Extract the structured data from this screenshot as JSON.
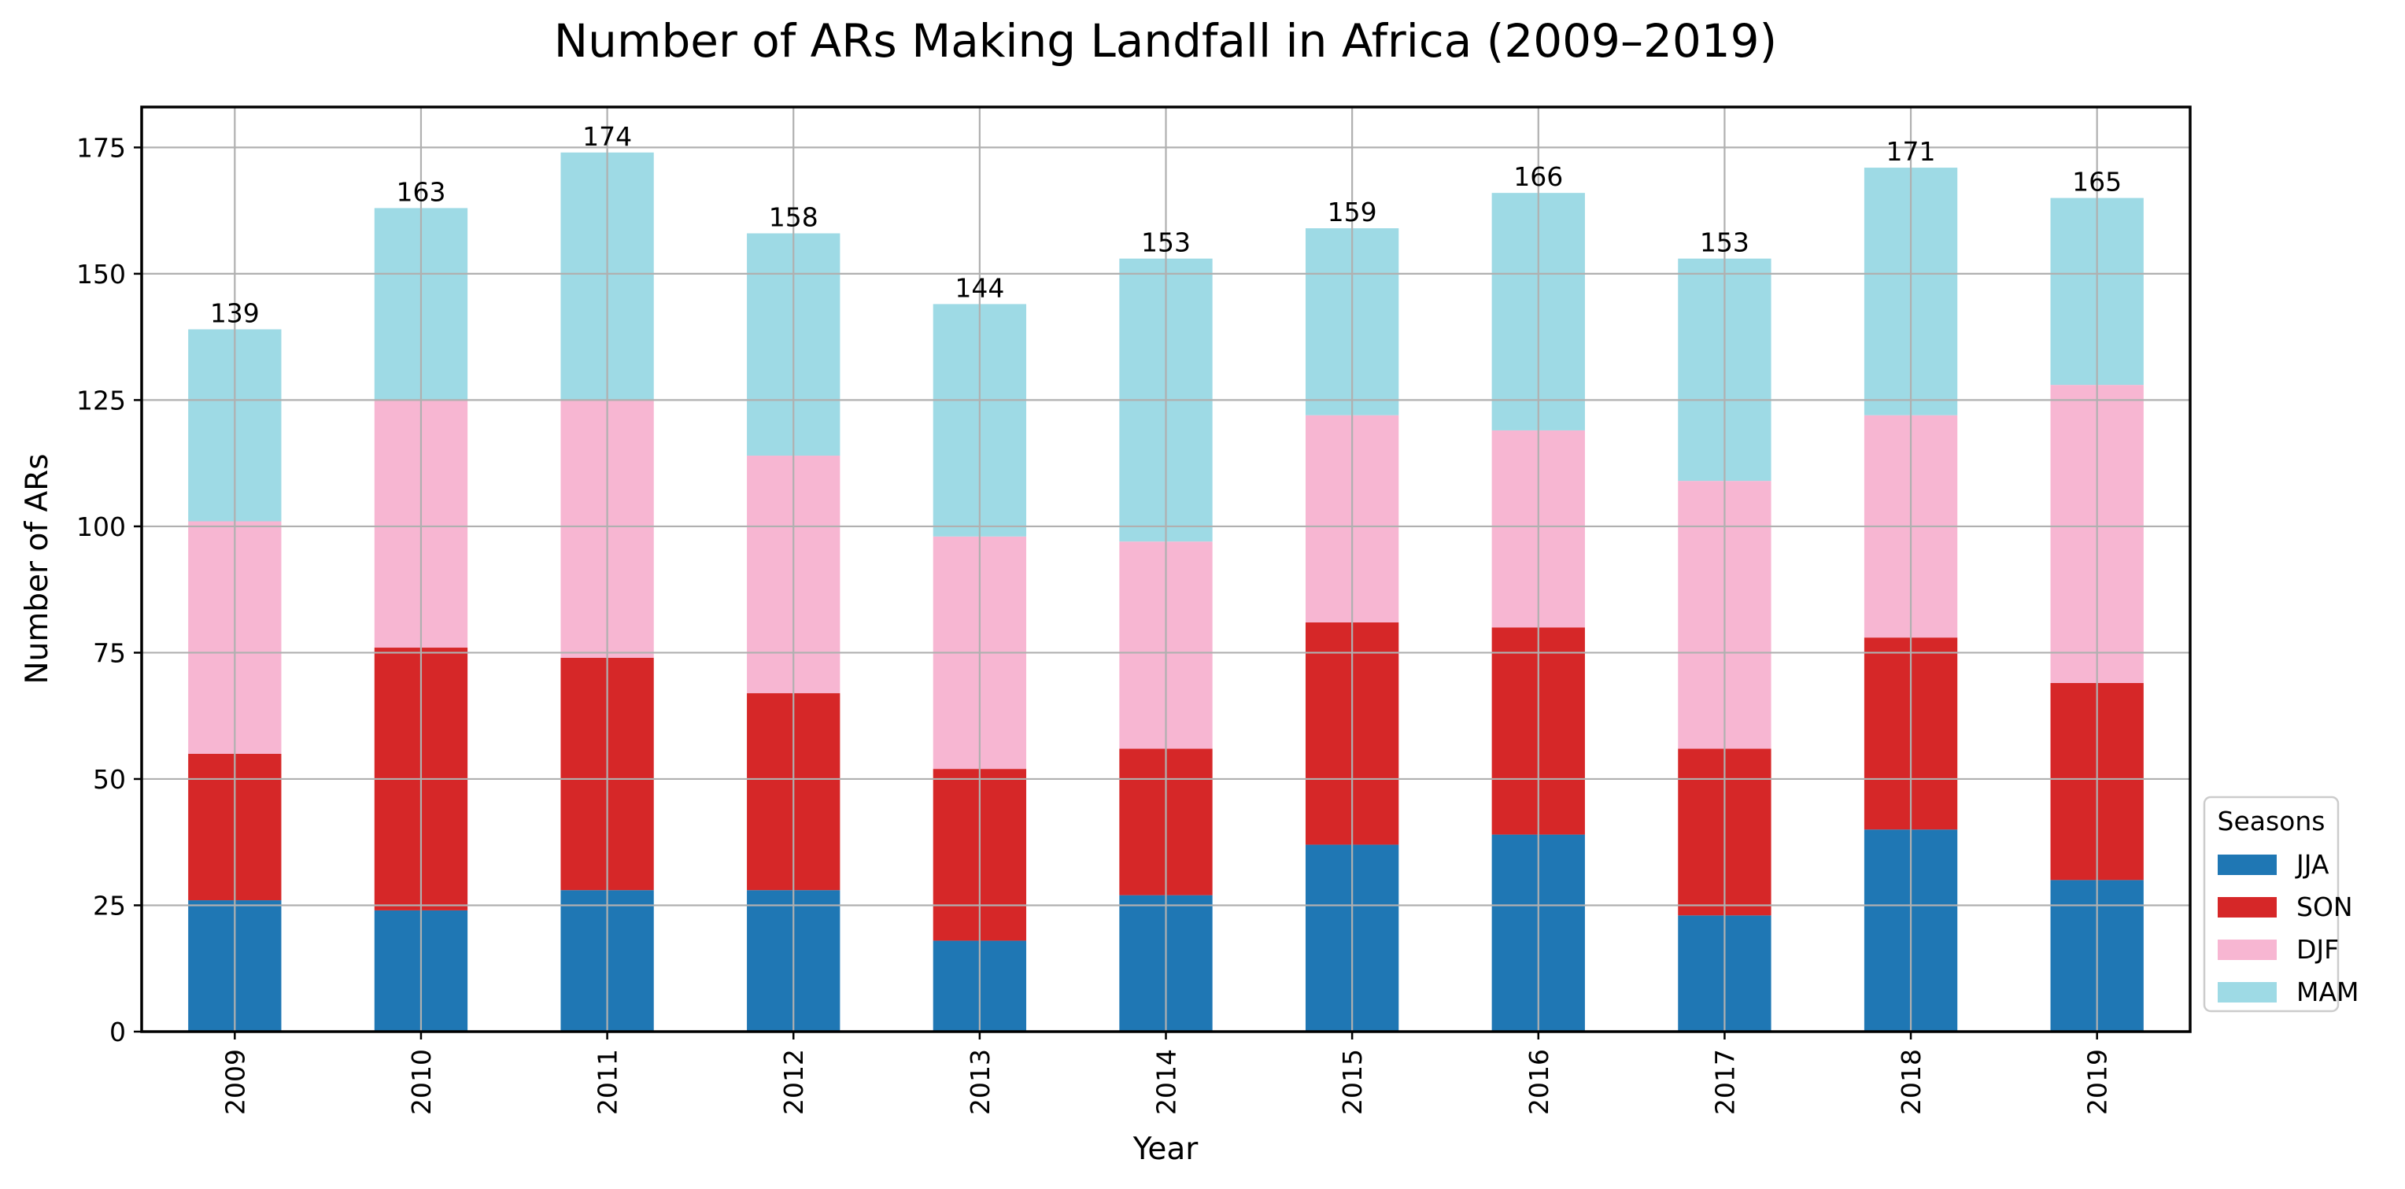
{
  "chart_data": {
    "type": "bar",
    "stacked": true,
    "title": "Number of ARs Making Landfall in Africa (2009–2019)",
    "xlabel": "Year",
    "ylabel": "Number of ARs",
    "ylim": [
      0,
      183
    ],
    "yticks": [
      0,
      25,
      50,
      75,
      100,
      125,
      150,
      175
    ],
    "grid": true,
    "categories": [
      "2009",
      "2010",
      "2011",
      "2012",
      "2013",
      "2014",
      "2015",
      "2016",
      "2017",
      "2018",
      "2019"
    ],
    "series": [
      {
        "name": "JJA",
        "color": "#1f77b4",
        "values": [
          26,
          24,
          28,
          28,
          18,
          27,
          37,
          39,
          23,
          40,
          30
        ]
      },
      {
        "name": "SON",
        "color": "#d62728",
        "values": [
          29,
          52,
          46,
          39,
          34,
          29,
          44,
          41,
          33,
          38,
          39
        ]
      },
      {
        "name": "DJF",
        "color": "#f7b6d2",
        "values": [
          46,
          49,
          51,
          47,
          46,
          41,
          41,
          39,
          53,
          44,
          59
        ]
      },
      {
        "name": "MAM",
        "color": "#9edae5",
        "values": [
          38,
          38,
          49,
          44,
          46,
          56,
          37,
          47,
          44,
          49,
          37
        ]
      }
    ],
    "totals": [
      "139",
      "163",
      "174",
      "158",
      "144",
      "153",
      "159",
      "166",
      "153",
      "171",
      "165"
    ],
    "legend": {
      "title": "Seasons",
      "placement": "outside-right-bottom"
    }
  }
}
